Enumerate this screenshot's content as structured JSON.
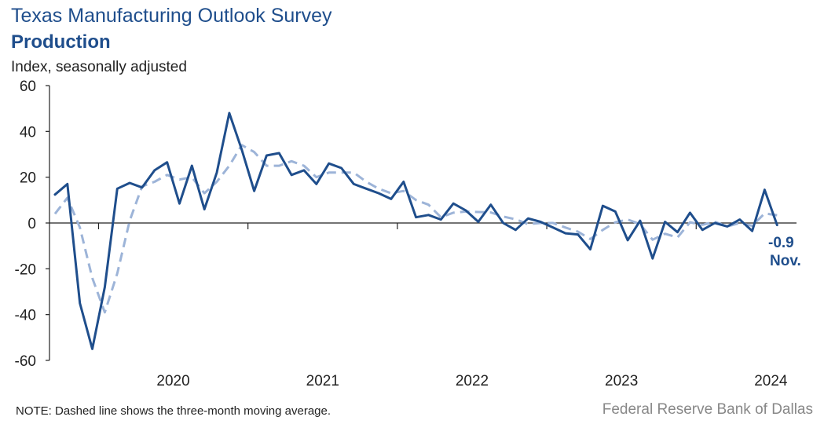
{
  "header": {
    "title": "Texas Manufacturing Outlook Survey",
    "subtitle": "Production",
    "ylabel": "Index, seasonally adjusted"
  },
  "footer": {
    "note": "NOTE: Dashed line shows the three-month  moving average.",
    "source": "Federal Reserve Bank of Dallas"
  },
  "annotation": {
    "value": "-0.9",
    "month": "Nov."
  },
  "colors": {
    "index_line": "#1f4e8c",
    "moving_average": "#9db4d8",
    "axis": "#222222"
  },
  "chart_data": {
    "type": "line",
    "title": "Texas Manufacturing Outlook Survey",
    "subtitle": "Production",
    "ylabel": "Index, seasonally adjusted",
    "xlabel": "",
    "ylim": [
      -60,
      60
    ],
    "yticks": [
      60,
      40,
      20,
      0,
      -20,
      -40,
      -60
    ],
    "xticks": [
      "2020",
      "2021",
      "2022",
      "2023",
      "2024"
    ],
    "grid": false,
    "start_month": "2019-09",
    "end_month": "2024-11",
    "series": [
      {
        "name": "",
        "style": "solid",
        "values": [
          12.4,
          17.0,
          -35.0,
          -55.0,
          -28.0,
          15.0,
          17.5,
          15.5,
          23.0,
          26.5,
          8.5,
          25.0,
          6.0,
          22.0,
          48.0,
          32.0,
          14.0,
          29.5,
          30.5,
          21.0,
          23.0,
          17.0,
          26.0,
          24.0,
          17.0,
          15.0,
          13.0,
          10.5,
          18.0,
          2.5,
          3.5,
          1.5,
          8.5,
          5.5,
          0.5,
          8.0,
          0.0,
          -3.0,
          2.0,
          0.5,
          -2.0,
          -4.5,
          -5.0,
          -11.5,
          7.5,
          5.0,
          -7.5,
          1.0,
          -15.5,
          0.5,
          -4.0,
          4.5,
          -3.0,
          0.0,
          -1.5,
          1.5,
          -3.5,
          14.5,
          -0.9
        ]
      },
      {
        "name": "",
        "style": "dashed",
        "values": [
          4.0,
          11.0,
          -2.0,
          -24.0,
          -39.0,
          -22.0,
          1.0,
          16.0,
          18.0,
          21.0,
          19.0,
          20.0,
          13.0,
          18.0,
          25.0,
          34.0,
          31.0,
          25.0,
          25.0,
          27.0,
          25.0,
          20.0,
          22.0,
          22.0,
          22.0,
          18.0,
          15.0,
          13.0,
          14.0,
          10.0,
          8.0,
          2.5,
          4.5,
          5.0,
          4.8,
          4.6,
          2.8,
          1.6,
          -0.5,
          0.0,
          0.0,
          -2.0,
          -3.8,
          -7.0,
          -3.0,
          0.3,
          1.5,
          -0.5,
          -7.3,
          -4.7,
          -6.3,
          0.3,
          -0.8,
          0.5,
          -1.5,
          0.0,
          -1.2,
          4.2,
          3.4
        ]
      }
    ]
  }
}
